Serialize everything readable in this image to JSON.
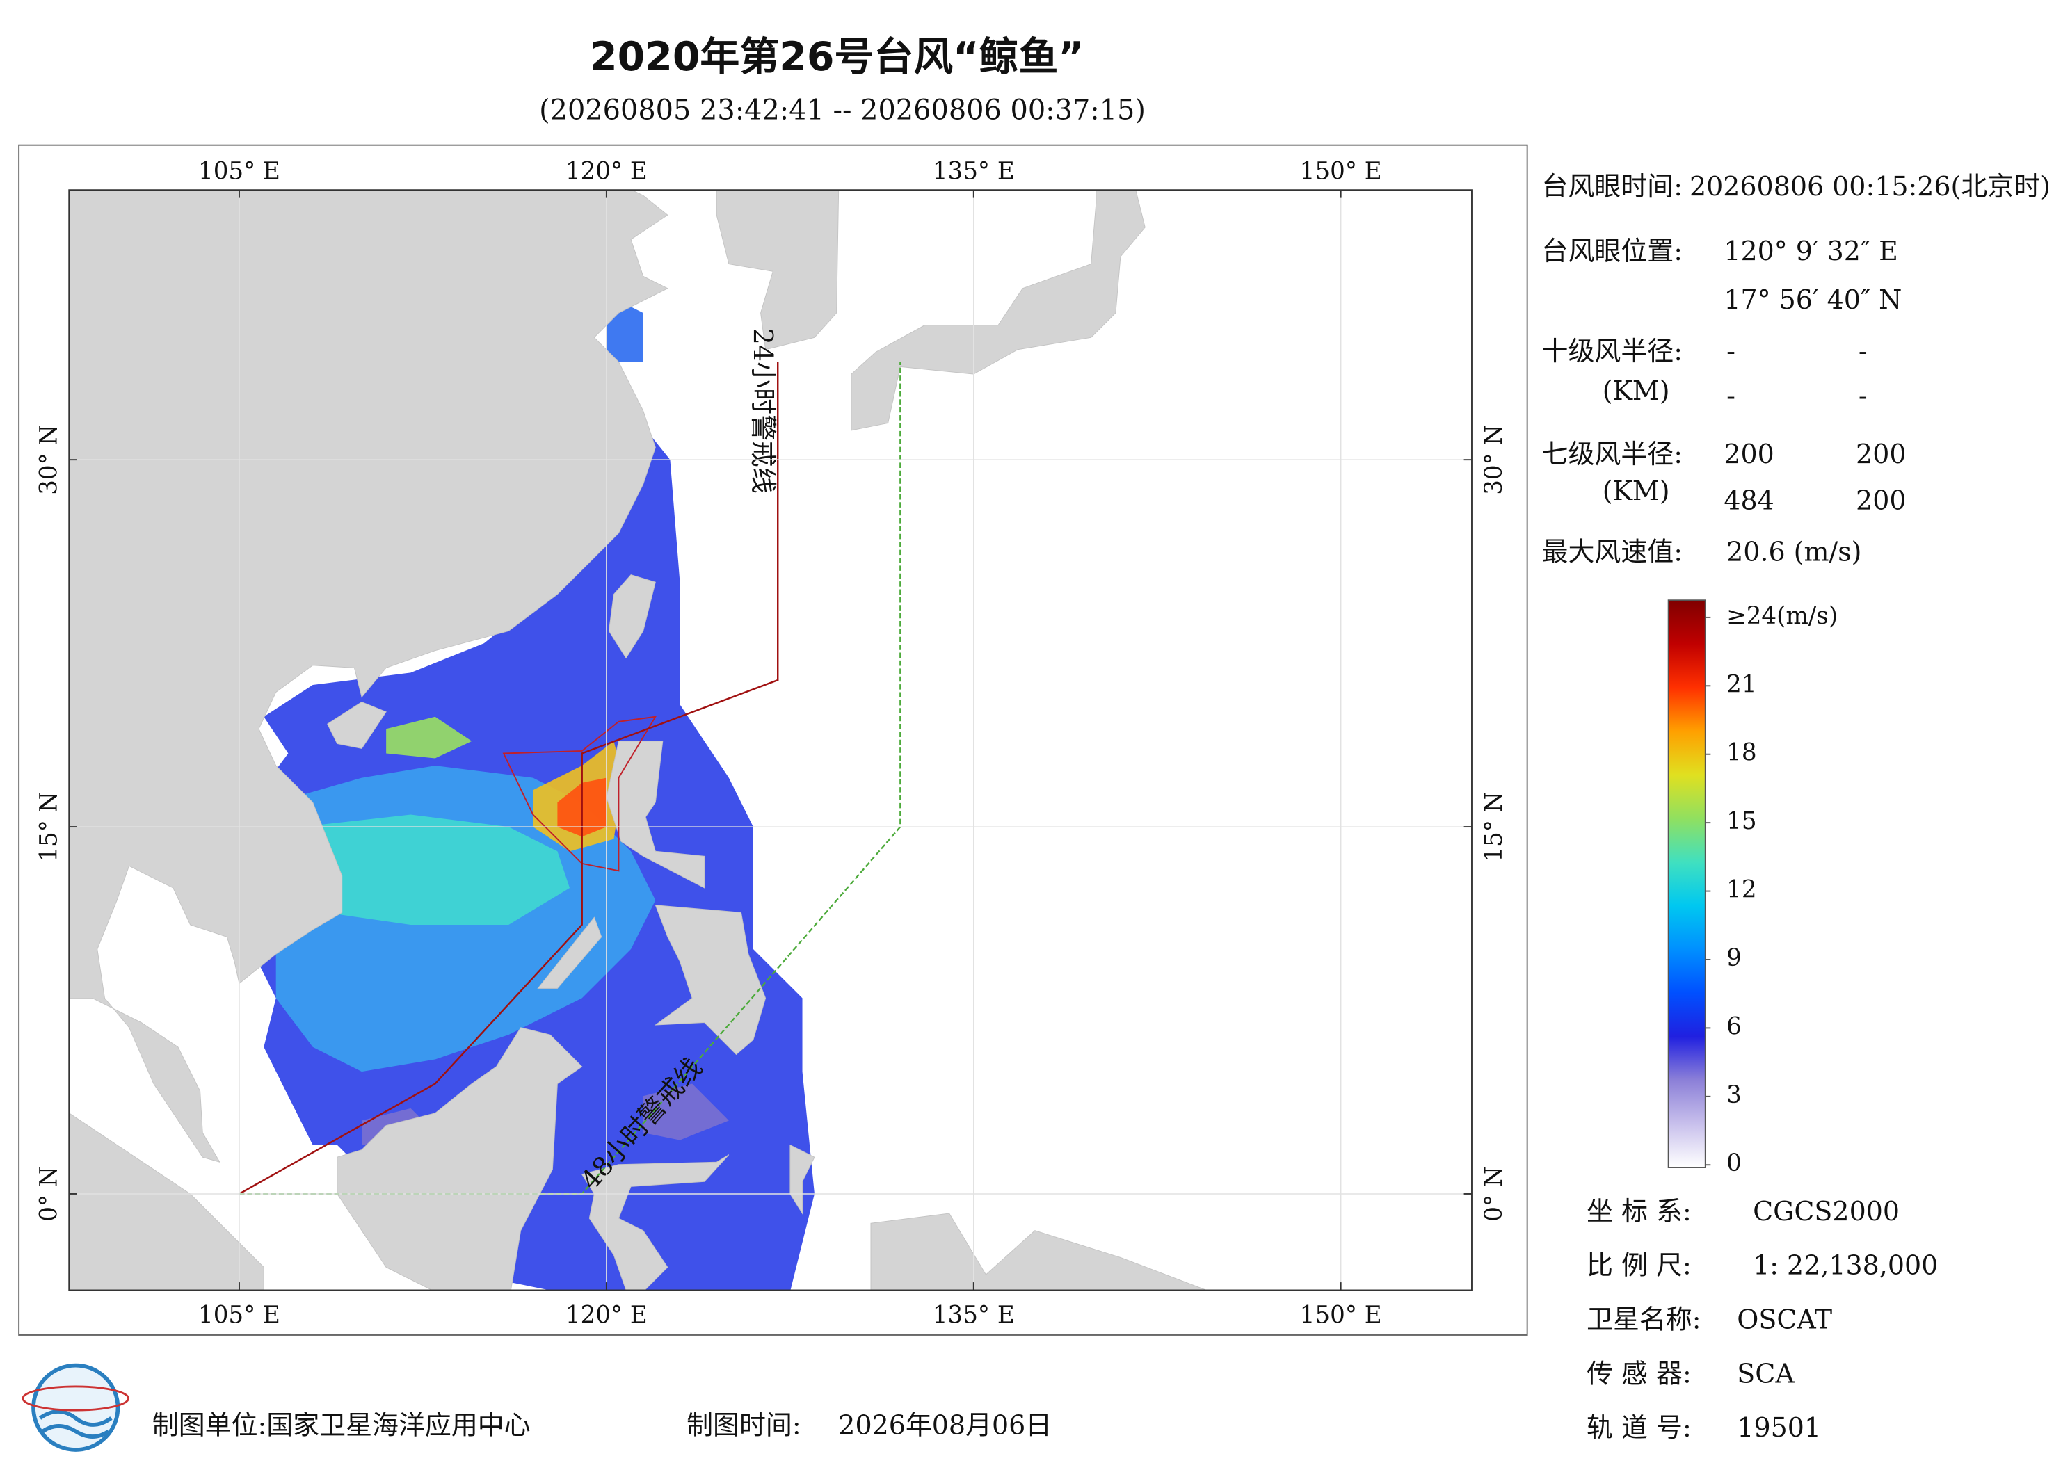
{
  "header": {
    "title": "2020年第26号台风“鲸鱼”",
    "subtitle": "(20260805 23:42:41 -- 20260806 00:37:15)"
  },
  "map": {
    "lon_ticks": [
      {
        "value": 105,
        "label": "105° E"
      },
      {
        "value": 120,
        "label": "120° E"
      },
      {
        "value": 135,
        "label": "135° E"
      },
      {
        "value": 150,
        "label": "150° E"
      }
    ],
    "lat_ticks": [
      {
        "value": 0,
        "label": "0° N"
      },
      {
        "value": 15,
        "label": "15° N"
      },
      {
        "value": 30,
        "label": "30° N"
      }
    ],
    "warning_24h": "24小时警戒线",
    "warning_48h": "48小时警戒线"
  },
  "info": {
    "eye_time": {
      "label": "台风眼时间:",
      "value": "20260806 00:15:26(北京时)"
    },
    "eye_position": {
      "label": "台风眼位置:",
      "lon": "120° 9′ 32″ E",
      "lat": "17° 56′ 40″ N"
    },
    "radius_10": {
      "label": "十级风半径:",
      "unit": "(KM)",
      "values": [
        [
          "-",
          "-"
        ],
        [
          "-",
          "-"
        ]
      ]
    },
    "radius_7": {
      "label": "七级风半径:",
      "unit": "(KM)",
      "values": [
        [
          "200",
          "200"
        ],
        [
          "484",
          "200"
        ]
      ]
    },
    "max_wind": {
      "label": "最大风速值:",
      "value": "20.6  (m/s)"
    }
  },
  "colorbar": {
    "ticks": [
      0,
      3,
      6,
      9,
      12,
      15,
      18,
      21,
      {
        "value": 24,
        "label": "≥24(m/s)"
      }
    ],
    "colors": [
      "#ffffff",
      "#c8c0ec",
      "#8c80d8",
      "#2020e0",
      "#0050ff",
      "#0090ff",
      "#00c8f0",
      "#40e0c0",
      "#90e060",
      "#e0e020",
      "#ffa000",
      "#ff3000",
      "#c00000",
      "#800000"
    ]
  },
  "meta": {
    "crs": {
      "label": "坐 标 系:",
      "value": "CGCS2000"
    },
    "scale": {
      "label": "比 例 尺:",
      "value": "1: 22,138,000"
    },
    "satellite": {
      "label": "卫星名称:",
      "value": "OSCAT"
    },
    "sensor": {
      "label": "传 感 器:",
      "value": "SCA"
    },
    "orbit": {
      "label": "轨 道 号:",
      "value": "19501"
    }
  },
  "footer": {
    "unit": "制图单位:国家卫星海洋应用中心",
    "time_label": "制图时间:",
    "time": "2026年08月06日"
  }
}
